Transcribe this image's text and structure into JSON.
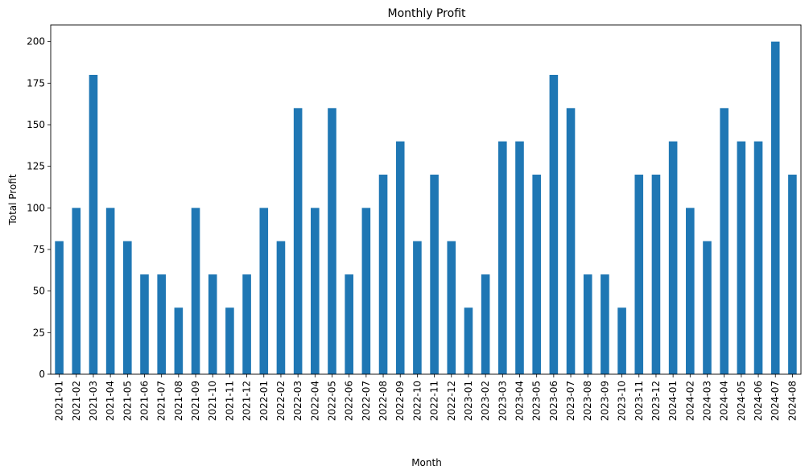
{
  "chart_data": {
    "type": "bar",
    "title": "Monthly Profit",
    "xlabel": "Month",
    "ylabel": "Total Profit",
    "ylim": [
      0,
      210
    ],
    "yticks": [
      0,
      25,
      50,
      75,
      100,
      125,
      150,
      175,
      200
    ],
    "grid": false,
    "legend": "none",
    "bar_color": "#1f77b4",
    "categories": [
      "2021-01",
      "2021-02",
      "2021-03",
      "2021-04",
      "2021-05",
      "2021-06",
      "2021-07",
      "2021-08",
      "2021-09",
      "2021-10",
      "2021-11",
      "2021-12",
      "2022-01",
      "2022-02",
      "2022-03",
      "2022-04",
      "2022-05",
      "2022-06",
      "2022-07",
      "2022-08",
      "2022-09",
      "2022-10",
      "2022-11",
      "2022-12",
      "2023-01",
      "2023-02",
      "2023-03",
      "2023-04",
      "2023-05",
      "2023-06",
      "2023-07",
      "2023-08",
      "2023-09",
      "2023-10",
      "2023-11",
      "2023-12",
      "2024-01",
      "2024-02",
      "2024-03",
      "2024-04",
      "2024-05",
      "2024-06",
      "2024-07",
      "2024-08"
    ],
    "values": [
      80,
      100,
      180,
      100,
      80,
      60,
      60,
      40,
      100,
      60,
      40,
      60,
      100,
      80,
      160,
      100,
      160,
      60,
      100,
      120,
      140,
      80,
      120,
      80,
      40,
      60,
      140,
      140,
      120,
      180,
      160,
      60,
      60,
      40,
      120,
      120,
      140,
      100,
      80,
      160,
      140,
      140,
      200,
      120
    ]
  }
}
